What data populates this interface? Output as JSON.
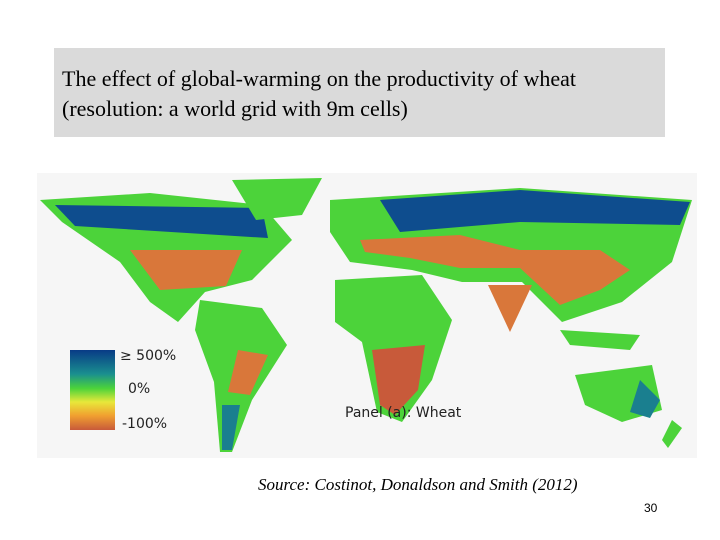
{
  "title": [
    "The effect of global-warming on the productivity of wheat",
    "(resolution: a world grid with 9m cells)"
  ],
  "map": {
    "legend": [
      "≥ 500%",
      "0%",
      "-100%"
    ],
    "panel_label": "Panel (a): Wheat"
  },
  "source": "Source: Costinot, Donaldson and Smith (2012)",
  "page_number": "30"
}
